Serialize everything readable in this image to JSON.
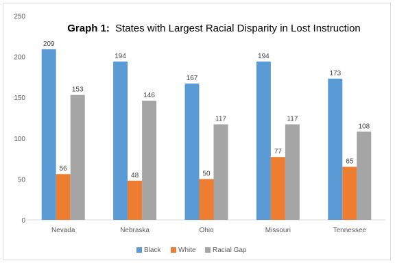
{
  "chart_data": {
    "type": "bar",
    "title_prefix": "Graph 1:",
    "title": "States with Largest Racial Disparity in Lost Instruction",
    "categories": [
      "Nevada",
      "Nebraska",
      "Ohio",
      "Missouri",
      "Tennessee"
    ],
    "series": [
      {
        "name": "Black",
        "color": "#5b9bd5",
        "values": [
          209,
          194,
          167,
          194,
          173
        ]
      },
      {
        "name": "White",
        "color": "#ed7d31",
        "values": [
          56,
          48,
          50,
          77,
          65
        ]
      },
      {
        "name": "Racial Gap",
        "color": "#a5a5a5",
        "values": [
          153,
          146,
          117,
          117,
          108
        ]
      }
    ],
    "ylim": [
      0,
      250
    ],
    "yticks": [
      0,
      50,
      100,
      150,
      200,
      250
    ],
    "grid": false,
    "legend_position": "bottom",
    "data_labels": true
  }
}
